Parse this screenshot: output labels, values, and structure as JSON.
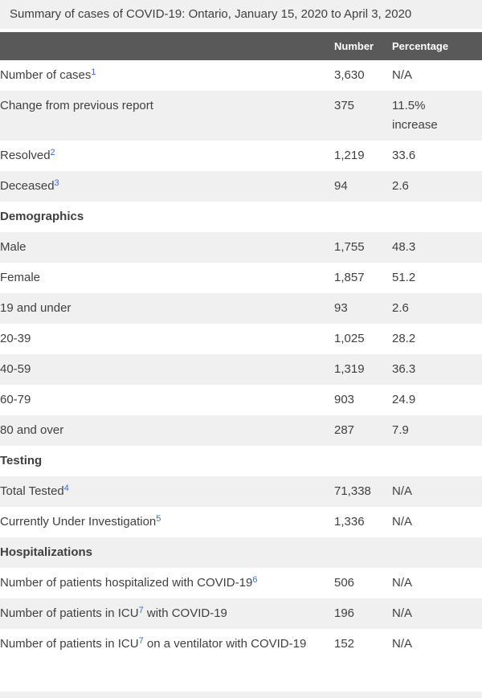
{
  "colors": {
    "title_bg": "#f0f0f0",
    "header_bg": "#595959",
    "header_text": "#ffffff",
    "stripe_bg": "#f0f0f0",
    "text": "#404040",
    "footnote_link": "#3c6dc5"
  },
  "chart_data": {
    "type": "table",
    "title": "Summary of cases of COVID-19: Ontario, January 15, 2020 to April 3, 2020",
    "column_headers": [
      "Number",
      "Percentage"
    ],
    "layout": {
      "zebra_striping": true,
      "first_data_row_bg": "white",
      "sections_share_striping": true
    },
    "rows": [
      {
        "type": "data",
        "pre": "Number of cases",
        "sup": "1",
        "post": "",
        "number": "3,630",
        "percentage": "N/A"
      },
      {
        "type": "data",
        "pre": "Change from previous report",
        "sup": "",
        "post": "",
        "number": "375",
        "percentage": "11.5% increase"
      },
      {
        "type": "data",
        "pre": "Resolved",
        "sup": "2",
        "post": "",
        "number": "1,219",
        "percentage": "33.6"
      },
      {
        "type": "data",
        "pre": "Deceased",
        "sup": "3",
        "post": "",
        "number": "94",
        "percentage": "2.6"
      },
      {
        "type": "section",
        "pre": "Demographics",
        "sup": "",
        "post": "",
        "number": "",
        "percentage": ""
      },
      {
        "type": "data",
        "pre": "Male",
        "sup": "",
        "post": "",
        "number": "1,755",
        "percentage": "48.3"
      },
      {
        "type": "data",
        "pre": "Female",
        "sup": "",
        "post": "",
        "number": "1,857",
        "percentage": "51.2"
      },
      {
        "type": "data",
        "pre": "19 and under",
        "sup": "",
        "post": "",
        "number": "93",
        "percentage": "2.6"
      },
      {
        "type": "data",
        "pre": "20-39",
        "sup": "",
        "post": "",
        "number": "1,025",
        "percentage": "28.2"
      },
      {
        "type": "data",
        "pre": "40-59",
        "sup": "",
        "post": "",
        "number": "1,319",
        "percentage": "36.3"
      },
      {
        "type": "data",
        "pre": "60-79",
        "sup": "",
        "post": "",
        "number": "903",
        "percentage": "24.9"
      },
      {
        "type": "data",
        "pre": "80 and over",
        "sup": "",
        "post": "",
        "number": "287",
        "percentage": "7.9"
      },
      {
        "type": "section",
        "pre": "Testing",
        "sup": "",
        "post": "",
        "number": "",
        "percentage": ""
      },
      {
        "type": "data",
        "pre": "Total Tested",
        "sup": "4",
        "post": "",
        "number": "71,338",
        "percentage": "N/A"
      },
      {
        "type": "data",
        "pre": "Currently Under Investigation",
        "sup": "5",
        "post": "",
        "number": "1,336",
        "percentage": "N/A"
      },
      {
        "type": "section",
        "pre": "Hospitalizations",
        "sup": "",
        "post": "",
        "number": "",
        "percentage": ""
      },
      {
        "type": "data",
        "pre": "Number of patients hospitalized with COVID-19",
        "sup": "6",
        "post": "",
        "number": "506",
        "percentage": "N/A"
      },
      {
        "type": "data",
        "pre": "Number of patients in ICU",
        "sup": "7",
        "post": " with COVID-19",
        "number": "196",
        "percentage": "N/A"
      },
      {
        "type": "data",
        "pre": "Number of patients in ICU",
        "sup": "7",
        "post": " on a ventilator with COVID-19",
        "number": "152",
        "percentage": "N/A"
      }
    ]
  }
}
